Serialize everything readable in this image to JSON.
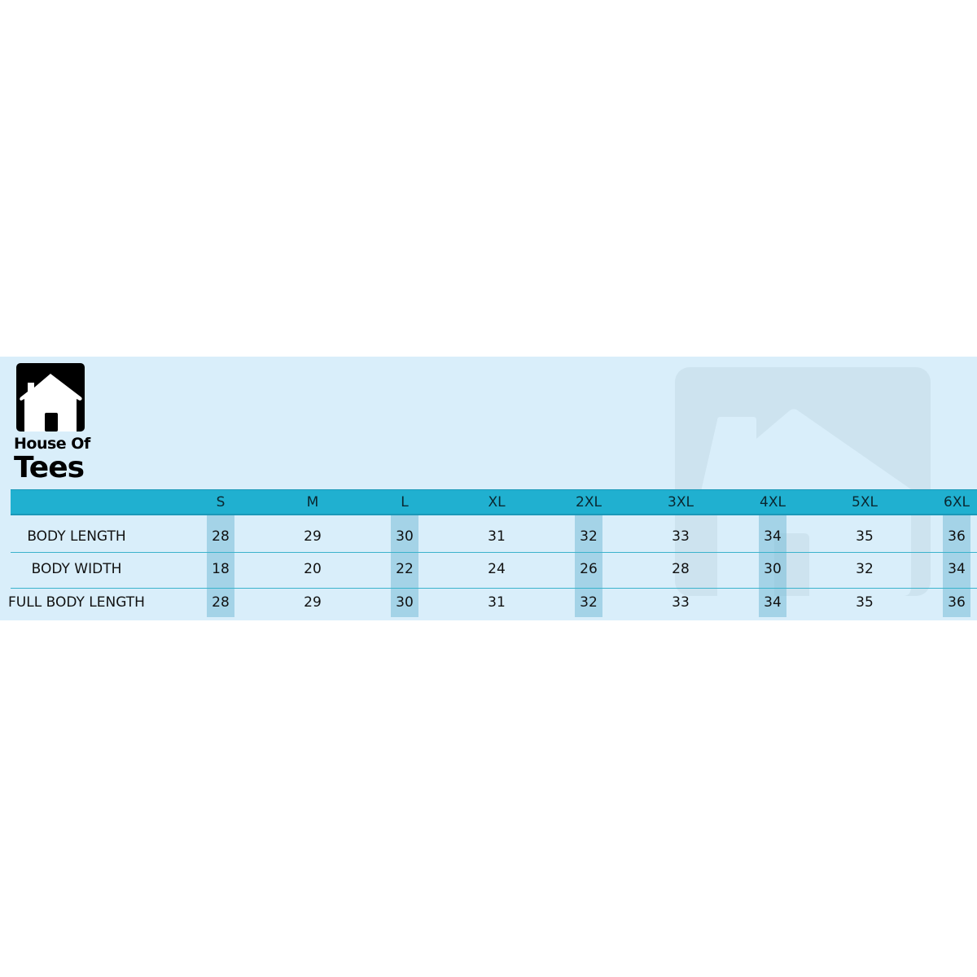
{
  "brand": {
    "line1": "House Of",
    "line2": "Tees"
  },
  "colors": {
    "panel": "#d9eefa",
    "header": "#20b0d0",
    "highlight_column": "#a0d2e4"
  },
  "table": {
    "sizes": [
      "S",
      "M",
      "L",
      "XL",
      "2XL",
      "3XL",
      "4XL",
      "5XL",
      "6XL"
    ],
    "highlighted_sizes": [
      "S",
      "L",
      "2XL",
      "4XL",
      "6XL"
    ],
    "rows": [
      {
        "label": "BODY LENGTH",
        "values": [
          "28",
          "29",
          "30",
          "31",
          "32",
          "33",
          "34",
          "35",
          "36"
        ]
      },
      {
        "label": "BODY WIDTH",
        "values": [
          "18",
          "20",
          "22",
          "24",
          "26",
          "28",
          "30",
          "32",
          "34"
        ]
      },
      {
        "label": "FULL BODY LENGTH",
        "values": [
          "28",
          "29",
          "30",
          "31",
          "32",
          "33",
          "34",
          "35",
          "36"
        ]
      }
    ]
  }
}
